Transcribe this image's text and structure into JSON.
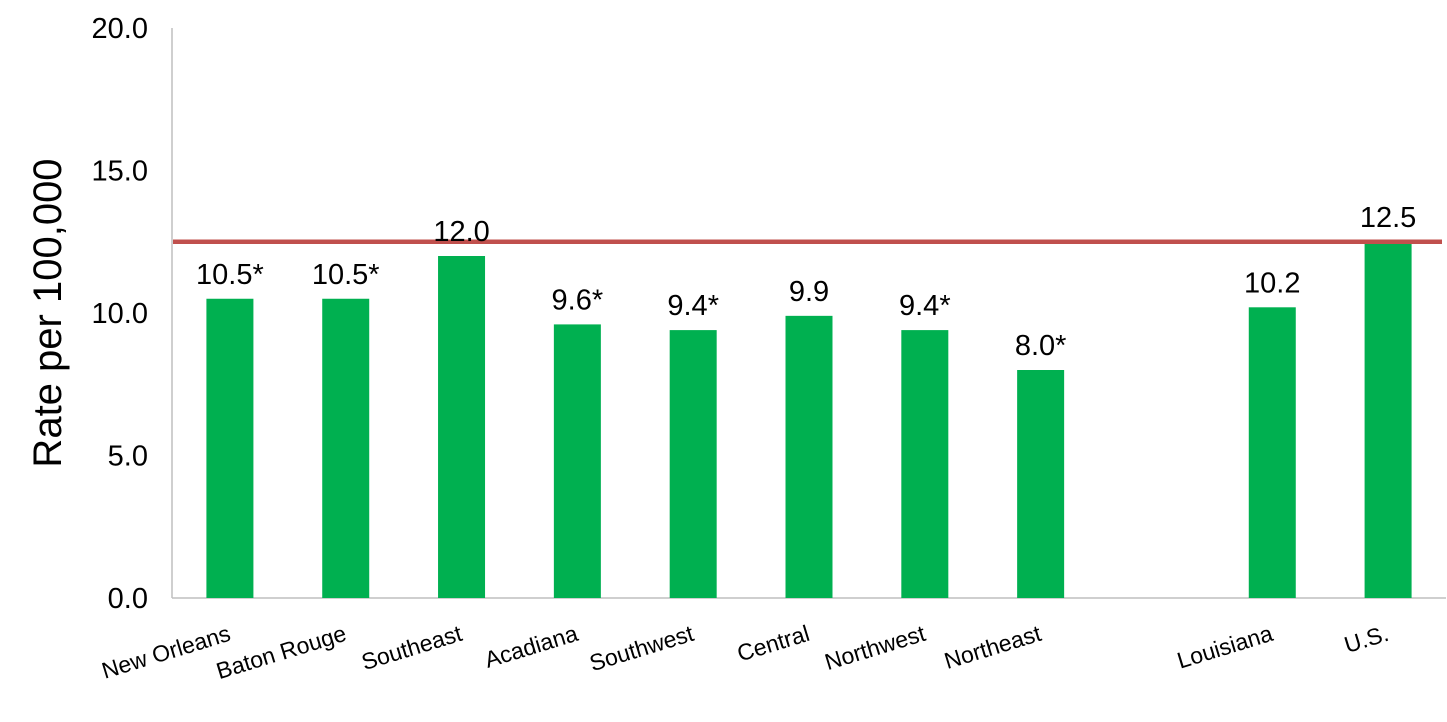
{
  "chart_data": {
    "type": "bar",
    "title": "",
    "xlabel": "",
    "ylabel": "Rate per 100,000",
    "ylim": [
      0,
      20
    ],
    "y_ticks": [
      "0.0",
      "5.0",
      "10.0",
      "15.0",
      "20.0"
    ],
    "grid": false,
    "categories": [
      "New Orleans",
      "Baton Rouge",
      "Southeast",
      "Acadiana",
      "Southwest",
      "Central",
      "Northwest",
      "Northeast",
      "",
      "Louisiana",
      "U.S."
    ],
    "values": [
      10.5,
      10.5,
      12.0,
      9.6,
      9.4,
      9.9,
      9.4,
      8.0,
      null,
      10.2,
      12.5
    ],
    "data_labels": [
      "10.5*",
      "10.5*",
      "12.0",
      "9.6*",
      "9.4*",
      "9.9",
      "9.4*",
      "8.0*",
      "",
      "10.2",
      "12.5"
    ],
    "reference_line": {
      "value": 12.5,
      "color": "#C0504D"
    },
    "bar_color": "#00B050"
  }
}
